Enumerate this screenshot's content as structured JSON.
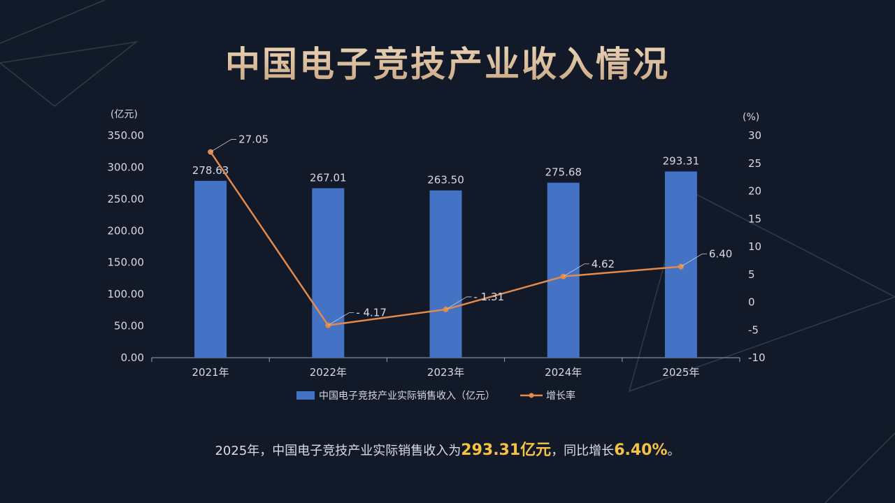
{
  "title": "中国电子竞技产业收入情况",
  "chart_data": {
    "type": "bar+line",
    "categories": [
      "2021年",
      "2022年",
      "2023年",
      "2024年",
      "2025年"
    ],
    "series": [
      {
        "name": "中国电子竞技产业实际销售收入（亿元）",
        "kind": "bar",
        "axis": "left",
        "values": [
          278.63,
          267.01,
          263.5,
          275.68,
          293.31
        ],
        "labels": [
          "278.63",
          "267.01",
          "263.50",
          "275.68",
          "293.31"
        ]
      },
      {
        "name": "增长率",
        "kind": "line",
        "axis": "right",
        "values": [
          27.05,
          -4.17,
          -1.31,
          4.62,
          6.4
        ],
        "labels": [
          "27.05",
          "- 4.17",
          "- 1.31",
          "4.62",
          "6.40"
        ]
      }
    ],
    "y_left": {
      "unit": "(亿元)",
      "min": 0,
      "max": 350,
      "ticks": [
        "0.00",
        "50.00",
        "100.00",
        "150.00",
        "200.00",
        "250.00",
        "300.00",
        "350.00"
      ]
    },
    "y_right": {
      "unit": "(%)",
      "min": -10,
      "max": 30,
      "ticks": [
        "-10",
        "-5",
        "0",
        "5",
        "10",
        "15",
        "20",
        "25",
        "30"
      ]
    },
    "colors": {
      "bar": "#4472c4",
      "line": "#e38a4c"
    }
  },
  "summary": {
    "prefix": "2025年，中国电子竞技产业实际销售收入为",
    "value1": "293.31亿元",
    "middle": "，同比增长",
    "value2": "6.40%",
    "suffix": "。"
  }
}
